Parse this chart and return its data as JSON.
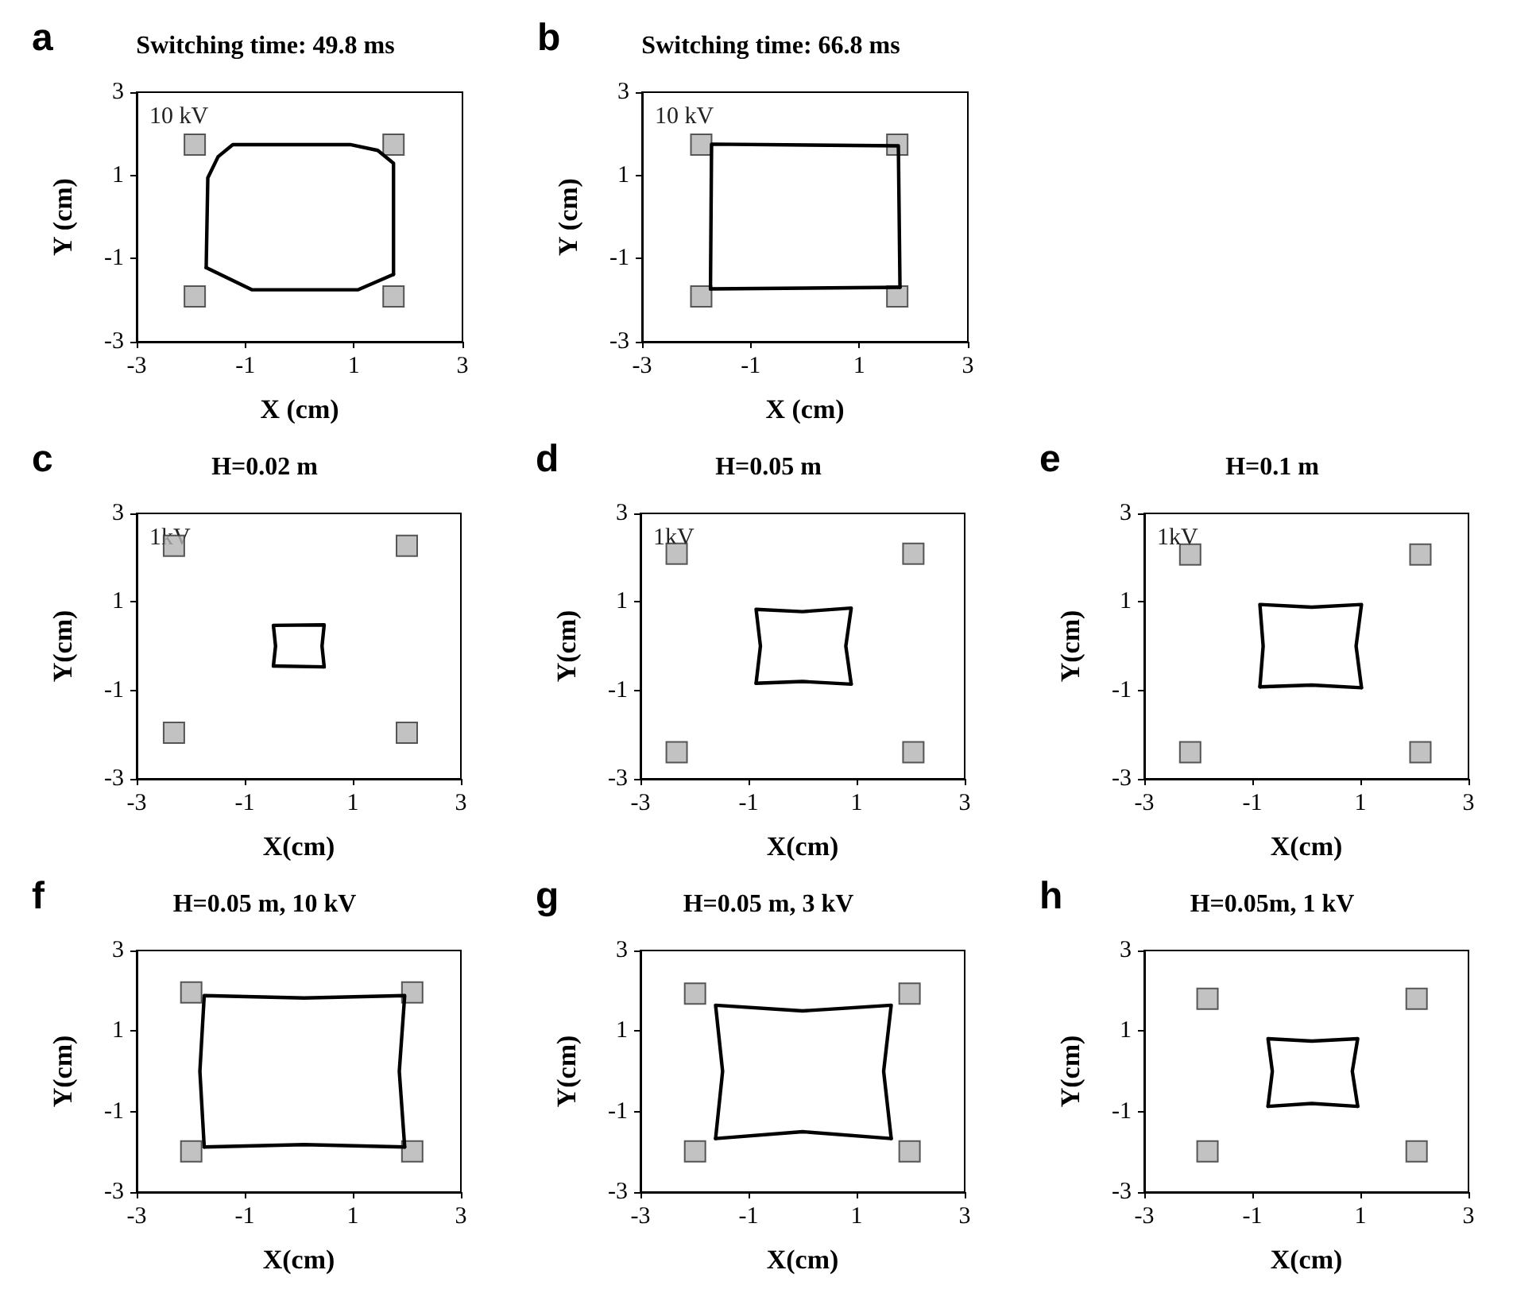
{
  "chart_data": [
    {
      "type": "line",
      "title": "Switching time: 49.8 ms",
      "xlabel": "X (cm)",
      "ylabel": "Y (cm)",
      "annotations": [
        "a",
        "10 kV"
      ],
      "xlim": [
        -3,
        3
      ],
      "ylim": [
        -3,
        3
      ],
      "xticks": [
        -3,
        -1,
        1,
        3
      ],
      "yticks": [
        -3,
        -1,
        1,
        3
      ],
      "series": [
        {
          "type": "line",
          "color": "#000000",
          "marker": "none",
          "x": [
            -1.72,
            -1.69,
            -1.5,
            -1.23,
            0.93,
            1.44,
            1.73,
            1.73
          ],
          "values": [
            -1.22,
            0.94,
            1.45,
            1.74,
            1.74,
            1.6,
            1.29,
            -1.38
          ]
        },
        {
          "type": "line",
          "color": "#000000",
          "marker": "none",
          "x": [
            -1.72,
            -0.88,
            1.08,
            1.73
          ],
          "values": [
            -1.22,
            -1.75,
            -1.75,
            -1.38
          ]
        },
        {
          "type": "scatter",
          "color": "#b3b3b3",
          "marker": "square",
          "x": [
            -1.93,
            1.73,
            -1.93,
            1.73
          ],
          "values": [
            1.74,
            1.74,
            -1.91,
            -1.91
          ]
        }
      ]
    },
    {
      "type": "line",
      "title": "Switching time: 66.8 ms",
      "xlabel": "X (cm)",
      "ylabel": "Y (cm)",
      "annotations": [
        "b",
        "10 kV"
      ],
      "xlim": [
        -3,
        3
      ],
      "ylim": [
        -3,
        3
      ],
      "xticks": [
        -3,
        -1,
        1,
        3
      ],
      "yticks": [
        -3,
        -1,
        1,
        3
      ],
      "series": [
        {
          "type": "line",
          "color": "#000000",
          "marker": "none",
          "x": [
            -1.74,
            -1.72,
            1.72,
            1.75
          ],
          "values": [
            -1.73,
            1.75,
            1.71,
            -1.69
          ]
        },
        {
          "type": "line",
          "color": "#000000",
          "marker": "none",
          "x": [
            -1.74,
            1.75
          ],
          "values": [
            -1.73,
            -1.69
          ]
        },
        {
          "type": "scatter",
          "color": "#b3b3b3",
          "marker": "square",
          "x": [
            -1.91,
            1.7,
            -1.91,
            1.7
          ],
          "values": [
            1.74,
            1.74,
            -1.91,
            -1.91
          ]
        }
      ]
    },
    {
      "type": "line",
      "title": "H=0.02 m",
      "xlabel": "X(cm)",
      "ylabel": "Y(cm)",
      "annotations": [
        "c",
        "1kV"
      ],
      "xlim": [
        -3,
        3
      ],
      "ylim": [
        -3,
        3
      ],
      "xticks": [
        -3,
        -1,
        1,
        3
      ],
      "yticks": [
        -3,
        -1,
        1,
        3
      ],
      "series": [
        {
          "type": "line",
          "color": "#000000",
          "marker": "none",
          "x": [
            -0.47,
            -0.43,
            -0.47,
            0.47,
            0.43,
            0.47
          ],
          "values": [
            -0.45,
            0,
            0.47,
            0.48,
            0,
            -0.47
          ]
        },
        {
          "type": "line",
          "color": "#000000",
          "marker": "none",
          "x": [
            -0.47,
            0.47
          ],
          "values": [
            -0.45,
            -0.47
          ]
        },
        {
          "type": "scatter",
          "color": "#b3b3b3",
          "marker": "square",
          "x": [
            -2.31,
            2.0,
            -2.31,
            2.0
          ],
          "values": [
            2.27,
            2.27,
            -1.96,
            -1.96
          ]
        }
      ]
    },
    {
      "type": "line",
      "title": "H=0.05 m",
      "xlabel": "X(cm)",
      "ylabel": "Y(cm)",
      "annotations": [
        "d",
        "1kV"
      ],
      "xlim": [
        -3,
        3
      ],
      "ylim": [
        -3,
        3
      ],
      "xticks": [
        -3,
        -1,
        1,
        3
      ],
      "yticks": [
        -3,
        -1,
        1,
        3
      ],
      "series": [
        {
          "type": "line",
          "color": "#000000",
          "marker": "none",
          "x": [
            -0.86,
            -0.78,
            -0.86,
            0,
            0.9,
            0.8,
            0.9
          ],
          "values": [
            -0.84,
            0,
            0.83,
            0.78,
            0.86,
            0,
            -0.86
          ]
        },
        {
          "type": "line",
          "color": "#000000",
          "marker": "none",
          "x": [
            -0.86,
            0,
            0.9
          ],
          "values": [
            -0.84,
            -0.8,
            -0.86
          ]
        },
        {
          "type": "scatter",
          "color": "#b3b3b3",
          "marker": "square",
          "x": [
            -2.33,
            2.05,
            -2.33,
            2.05
          ],
          "values": [
            2.09,
            2.09,
            -2.4,
            -2.4
          ]
        }
      ]
    },
    {
      "type": "line",
      "title": "H=0.1 m",
      "xlabel": "X(cm)",
      "ylabel": "Y(cm)",
      "annotations": [
        "e",
        "1kV"
      ],
      "xlim": [
        -3,
        3
      ],
      "ylim": [
        -3,
        3
      ],
      "xticks": [
        -3,
        -1,
        1,
        3
      ],
      "yticks": [
        -3,
        -1,
        1,
        3
      ],
      "series": [
        {
          "type": "line",
          "color": "#000000",
          "marker": "none",
          "x": [
            -0.86,
            -0.8,
            -0.86,
            0.1,
            1.02,
            0.92,
            1.02
          ],
          "values": [
            -0.92,
            0,
            0.94,
            0.88,
            0.94,
            0,
            -0.94
          ]
        },
        {
          "type": "line",
          "color": "#000000",
          "marker": "none",
          "x": [
            -0.86,
            0.1,
            1.02
          ],
          "values": [
            -0.92,
            -0.88,
            -0.94
          ]
        },
        {
          "type": "scatter",
          "color": "#b3b3b3",
          "marker": "square",
          "x": [
            -2.15,
            2.11,
            -2.15,
            2.11
          ],
          "values": [
            2.07,
            2.07,
            -2.4,
            -2.4
          ]
        }
      ]
    },
    {
      "type": "line",
      "title": "H=0.05 m, 10 kV",
      "xlabel": "X(cm)",
      "ylabel": "Y(cm)",
      "annotations": [
        "f"
      ],
      "xlim": [
        -3,
        3
      ],
      "ylim": [
        -3,
        3
      ],
      "xticks": [
        -3,
        -1,
        1,
        3
      ],
      "yticks": [
        -3,
        -1,
        1,
        3
      ],
      "series": [
        {
          "type": "line",
          "color": "#000000",
          "marker": "none",
          "x": [
            -1.75,
            -1.83,
            -1.75,
            0.1,
            1.96,
            1.86,
            1.96
          ],
          "values": [
            -1.88,
            0,
            1.88,
            1.82,
            1.88,
            0,
            -1.88
          ]
        },
        {
          "type": "line",
          "color": "#000000",
          "marker": "none",
          "x": [
            -1.75,
            0.1,
            1.96
          ],
          "values": [
            -1.88,
            -1.82,
            -1.88
          ]
        },
        {
          "type": "scatter",
          "color": "#b3b3b3",
          "marker": "square",
          "x": [
            -1.99,
            2.1,
            -1.99,
            2.1
          ],
          "values": [
            1.96,
            1.96,
            -1.99,
            -1.99
          ]
        }
      ]
    },
    {
      "type": "line",
      "title": "H=0.05 m, 3 kV",
      "xlabel": "X(cm)",
      "ylabel": "Y(cm)",
      "annotations": [
        "g"
      ],
      "xlim": [
        -3,
        3
      ],
      "ylim": [
        -3,
        3
      ],
      "xticks": [
        -3,
        -1,
        1,
        3
      ],
      "yticks": [
        -3,
        -1,
        1,
        3
      ],
      "series": [
        {
          "type": "line",
          "color": "#000000",
          "marker": "none",
          "x": [
            -1.61,
            -1.48,
            -1.61,
            0,
            1.64,
            1.5,
            1.64
          ],
          "values": [
            -1.67,
            0,
            1.64,
            1.5,
            1.64,
            0,
            -1.67
          ]
        },
        {
          "type": "line",
          "color": "#000000",
          "marker": "none",
          "x": [
            -1.61,
            0,
            1.64
          ],
          "values": [
            -1.67,
            -1.5,
            -1.67
          ]
        },
        {
          "type": "scatter",
          "color": "#b3b3b3",
          "marker": "square",
          "x": [
            -1.99,
            1.98,
            -1.99,
            1.98
          ],
          "values": [
            1.93,
            1.93,
            -1.99,
            -1.99
          ]
        }
      ]
    },
    {
      "type": "line",
      "title": "H=0.05m, 1 kV",
      "xlabel": "X(cm)",
      "ylabel": "Y(cm)",
      "annotations": [
        "h"
      ],
      "xlim": [
        -3,
        3
      ],
      "ylim": [
        -3,
        3
      ],
      "xticks": [
        -3,
        -1,
        1,
        3
      ],
      "yticks": [
        -3,
        -1,
        1,
        3
      ],
      "series": [
        {
          "type": "line",
          "color": "#000000",
          "marker": "none",
          "x": [
            -0.71,
            -0.63,
            -0.71,
            0.1,
            0.95,
            0.85,
            0.95
          ],
          "values": [
            -0.87,
            0,
            0.81,
            0.75,
            0.81,
            0,
            -0.87
          ]
        },
        {
          "type": "line",
          "color": "#000000",
          "marker": "none",
          "x": [
            -0.71,
            0.1,
            0.95
          ],
          "values": [
            -0.87,
            -0.8,
            -0.87
          ]
        },
        {
          "type": "scatter",
          "color": "#b3b3b3",
          "marker": "square",
          "x": [
            -1.83,
            2.04,
            -1.83,
            2.04
          ],
          "values": [
            1.8,
            1.8,
            -1.99,
            -1.99
          ]
        }
      ]
    }
  ]
}
